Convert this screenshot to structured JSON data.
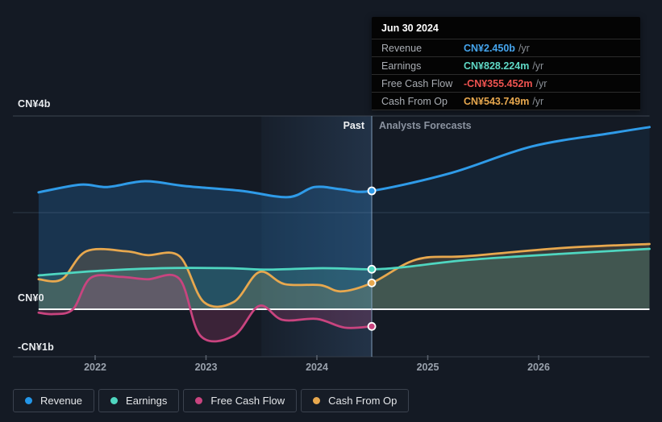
{
  "tooltip": {
    "title": "Jun 30 2024",
    "rows": [
      {
        "key": "revenue",
        "label": "Revenue",
        "value": "CN¥2.450b",
        "suffix": "/yr",
        "color": "#45a5ee"
      },
      {
        "key": "earnings",
        "label": "Earnings",
        "value": "CN¥828.224m",
        "suffix": "/yr",
        "color": "#5fd9c6"
      },
      {
        "key": "free-cash-flow",
        "label": "Free Cash Flow",
        "value": "-CN¥355.452m",
        "suffix": "/yr",
        "color": "#ef5350"
      },
      {
        "key": "cash-from-op",
        "label": "Cash From Op",
        "value": "CN¥543.749m",
        "suffix": "/yr",
        "color": "#e8a84e"
      }
    ]
  },
  "labels": {
    "past": "Past",
    "forecast": "Analysts Forecasts"
  },
  "legend": [
    {
      "key": "revenue",
      "label": "Revenue",
      "color": "#2396e8"
    },
    {
      "key": "earnings",
      "label": "Earnings",
      "color": "#4fd6c0"
    },
    {
      "key": "free-cash-flow",
      "label": "Free Cash Flow",
      "color": "#c9447f"
    },
    {
      "key": "cash-from-op",
      "label": "Cash From Op",
      "color": "#e8a84e"
    }
  ],
  "chart_data": {
    "type": "line",
    "unit": "CN¥ billions per year",
    "x_axis": {
      "tick_years": [
        2022,
        2023,
        2024,
        2025,
        2026
      ],
      "range": [
        2021.49,
        2027.0
      ]
    },
    "y_axis": {
      "ticks": [
        {
          "label": "CN¥4b",
          "value": 4
        },
        {
          "label": "CN¥0",
          "value": 0
        },
        {
          "label": "-CN¥1b",
          "value": -1
        }
      ],
      "unlabeled_gridline_value": 2,
      "range": [
        -1,
        4
      ]
    },
    "divider": {
      "date": "Jun 30 2024",
      "year": 2024.495
    },
    "past_band": {
      "start_year": 2023.5,
      "end_year": 2024.495
    },
    "series": [
      {
        "name": "Revenue",
        "color": "#2f9be8",
        "line_width": 3,
        "area_past": "rgba(41,121,190,0.28)",
        "area_forecast": "rgba(41,121,190,0.10)",
        "split_area_at_divider": true,
        "marker_value": 2.45,
        "points": [
          [
            2021.49,
            2.42
          ],
          [
            2021.87,
            2.58
          ],
          [
            2022.11,
            2.53
          ],
          [
            2022.45,
            2.65
          ],
          [
            2022.81,
            2.55
          ],
          [
            2023.32,
            2.45
          ],
          [
            2023.74,
            2.32
          ],
          [
            2023.98,
            2.53
          ],
          [
            2024.23,
            2.48
          ],
          [
            2024.495,
            2.45
          ],
          [
            2025.21,
            2.82
          ],
          [
            2025.94,
            3.37
          ],
          [
            2026.67,
            3.65
          ],
          [
            2027.0,
            3.77
          ]
        ]
      },
      {
        "name": "Cash From Op",
        "color": "#e8a84e",
        "line_width": 2.75,
        "area_past": "rgba(232,168,78,0.18)",
        "area_forecast": "rgba(232,168,78,0.18)",
        "split_area_at_divider": false,
        "marker_value": 0.544,
        "points": [
          [
            2021.49,
            0.62
          ],
          [
            2021.7,
            0.62
          ],
          [
            2021.92,
            1.2
          ],
          [
            2022.28,
            1.2
          ],
          [
            2022.47,
            1.12
          ],
          [
            2022.76,
            1.1
          ],
          [
            2022.98,
            0.15
          ],
          [
            2023.25,
            0.15
          ],
          [
            2023.48,
            0.77
          ],
          [
            2023.71,
            0.52
          ],
          [
            2024.03,
            0.5
          ],
          [
            2024.22,
            0.37
          ],
          [
            2024.495,
            0.544
          ],
          [
            2024.9,
            1.03
          ],
          [
            2025.36,
            1.1
          ],
          [
            2026.23,
            1.27
          ],
          [
            2027.0,
            1.35
          ]
        ]
      },
      {
        "name": "Earnings",
        "color": "#4fd6c0",
        "line_width": 2.75,
        "area_past": "rgba(92,214,195,0.18)",
        "area_forecast": "rgba(92,214,195,0.18)",
        "split_area_at_divider": false,
        "marker_value": 0.828,
        "points": [
          [
            2021.49,
            0.7
          ],
          [
            2022.0,
            0.79
          ],
          [
            2022.6,
            0.85
          ],
          [
            2023.2,
            0.85
          ],
          [
            2023.56,
            0.82
          ],
          [
            2024.05,
            0.85
          ],
          [
            2024.495,
            0.828
          ],
          [
            2024.78,
            0.87
          ],
          [
            2025.36,
            1.02
          ],
          [
            2026.23,
            1.15
          ],
          [
            2027.0,
            1.25
          ]
        ]
      },
      {
        "name": "Free Cash Flow",
        "color": "#c9447f",
        "line_width": 2.75,
        "area_past": "rgba(201,68,127,0.22)",
        "area_forecast": "rgba(201,68,127,0.22)",
        "split_area_at_divider": false,
        "marker_value": -0.355,
        "points": [
          [
            2021.49,
            -0.07
          ],
          [
            2021.62,
            -0.1
          ],
          [
            2021.8,
            0.0
          ],
          [
            2021.96,
            0.65
          ],
          [
            2022.23,
            0.67
          ],
          [
            2022.47,
            0.62
          ],
          [
            2022.76,
            0.63
          ],
          [
            2022.95,
            -0.55
          ],
          [
            2023.25,
            -0.55
          ],
          [
            2023.48,
            0.07
          ],
          [
            2023.69,
            -0.22
          ],
          [
            2024.0,
            -0.2
          ],
          [
            2024.25,
            -0.38
          ],
          [
            2024.495,
            -0.355
          ]
        ]
      }
    ]
  }
}
